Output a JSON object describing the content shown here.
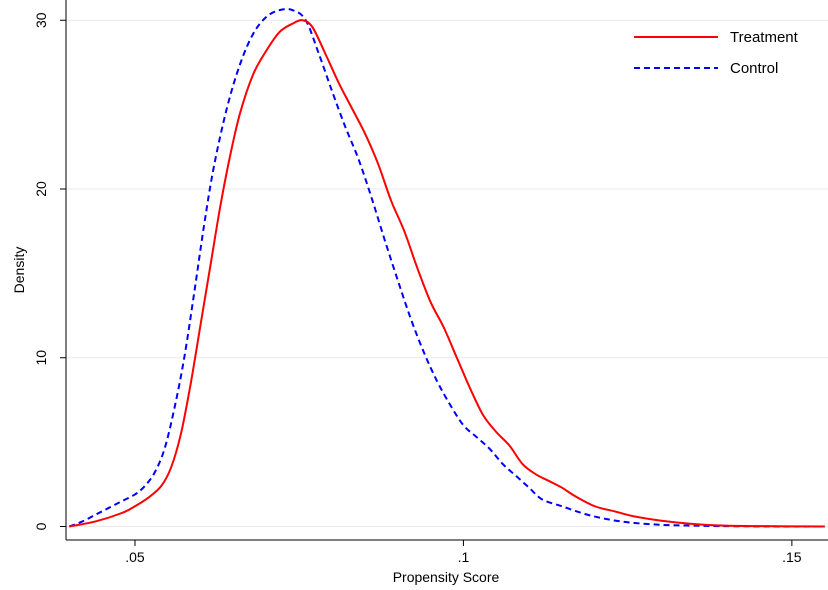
{
  "chart_data": {
    "type": "line",
    "title": "",
    "xlabel": "Propensity Score",
    "ylabel": "Density",
    "xlim": [
      0.0395,
      0.1555
    ],
    "ylim": [
      -0.8,
      31.2
    ],
    "x_ticks": [
      0.05,
      0.1,
      0.15
    ],
    "x_tick_labels": [
      ".05",
      ".1",
      ".15"
    ],
    "y_ticks": [
      0,
      10,
      20,
      30
    ],
    "y_tick_labels": [
      "0",
      "10",
      "20",
      "30"
    ],
    "grid": "horizontal",
    "legend_position": "top-right",
    "series": [
      {
        "name": "Treatment",
        "color": "#ff0000",
        "dash": "solid",
        "points": [
          [
            0.04,
            0.0
          ],
          [
            0.044,
            0.3
          ],
          [
            0.048,
            0.8
          ],
          [
            0.05,
            1.2
          ],
          [
            0.052,
            1.7
          ],
          [
            0.054,
            2.4
          ],
          [
            0.0555,
            3.5
          ],
          [
            0.057,
            5.5
          ],
          [
            0.0585,
            8.5
          ],
          [
            0.06,
            12.0
          ],
          [
            0.0615,
            15.5
          ],
          [
            0.063,
            19.0
          ],
          [
            0.0645,
            22.0
          ],
          [
            0.066,
            24.5
          ],
          [
            0.068,
            26.8
          ],
          [
            0.07,
            28.2
          ],
          [
            0.072,
            29.3
          ],
          [
            0.074,
            29.8
          ],
          [
            0.0755,
            30.0
          ],
          [
            0.077,
            29.6
          ],
          [
            0.079,
            28.0
          ],
          [
            0.081,
            26.3
          ],
          [
            0.083,
            24.8
          ],
          [
            0.085,
            23.3
          ],
          [
            0.087,
            21.5
          ],
          [
            0.089,
            19.3
          ],
          [
            0.091,
            17.5
          ],
          [
            0.093,
            15.3
          ],
          [
            0.095,
            13.3
          ],
          [
            0.097,
            11.8
          ],
          [
            0.099,
            10.0
          ],
          [
            0.101,
            8.2
          ],
          [
            0.103,
            6.6
          ],
          [
            0.105,
            5.6
          ],
          [
            0.107,
            4.8
          ],
          [
            0.109,
            3.7
          ],
          [
            0.111,
            3.1
          ],
          [
            0.113,
            2.7
          ],
          [
            0.115,
            2.3
          ],
          [
            0.117,
            1.8
          ],
          [
            0.12,
            1.2
          ],
          [
            0.123,
            0.9
          ],
          [
            0.126,
            0.6
          ],
          [
            0.13,
            0.35
          ],
          [
            0.135,
            0.15
          ],
          [
            0.14,
            0.05
          ],
          [
            0.145,
            0.02
          ],
          [
            0.15,
            0.01
          ],
          [
            0.155,
            0.0
          ]
        ]
      },
      {
        "name": "Control",
        "color": "#0000ff",
        "dash": "dashed",
        "points": [
          [
            0.04,
            0.0
          ],
          [
            0.042,
            0.3
          ],
          [
            0.044,
            0.7
          ],
          [
            0.046,
            1.1
          ],
          [
            0.048,
            1.5
          ],
          [
            0.05,
            1.9
          ],
          [
            0.0515,
            2.4
          ],
          [
            0.053,
            3.2
          ],
          [
            0.0545,
            4.6
          ],
          [
            0.056,
            7.0
          ],
          [
            0.0575,
            10.0
          ],
          [
            0.059,
            13.8
          ],
          [
            0.0605,
            17.8
          ],
          [
            0.062,
            21.3
          ],
          [
            0.064,
            24.8
          ],
          [
            0.066,
            27.4
          ],
          [
            0.068,
            29.2
          ],
          [
            0.07,
            30.2
          ],
          [
            0.072,
            30.6
          ],
          [
            0.074,
            30.6
          ],
          [
            0.076,
            30.0
          ],
          [
            0.078,
            28.0
          ],
          [
            0.08,
            25.8
          ],
          [
            0.082,
            23.7
          ],
          [
            0.084,
            21.8
          ],
          [
            0.086,
            19.5
          ],
          [
            0.088,
            17.0
          ],
          [
            0.09,
            14.6
          ],
          [
            0.092,
            12.3
          ],
          [
            0.094,
            10.3
          ],
          [
            0.096,
            8.6
          ],
          [
            0.098,
            7.2
          ],
          [
            0.1,
            6.0
          ],
          [
            0.102,
            5.3
          ],
          [
            0.104,
            4.6
          ],
          [
            0.106,
            3.7
          ],
          [
            0.108,
            3.0
          ],
          [
            0.11,
            2.3
          ],
          [
            0.112,
            1.6
          ],
          [
            0.115,
            1.2
          ],
          [
            0.118,
            0.8
          ],
          [
            0.121,
            0.5
          ],
          [
            0.125,
            0.25
          ],
          [
            0.13,
            0.1
          ],
          [
            0.135,
            0.05
          ],
          [
            0.14,
            0.02
          ],
          [
            0.15,
            0.0
          ],
          [
            0.155,
            0.0
          ]
        ]
      }
    ]
  }
}
